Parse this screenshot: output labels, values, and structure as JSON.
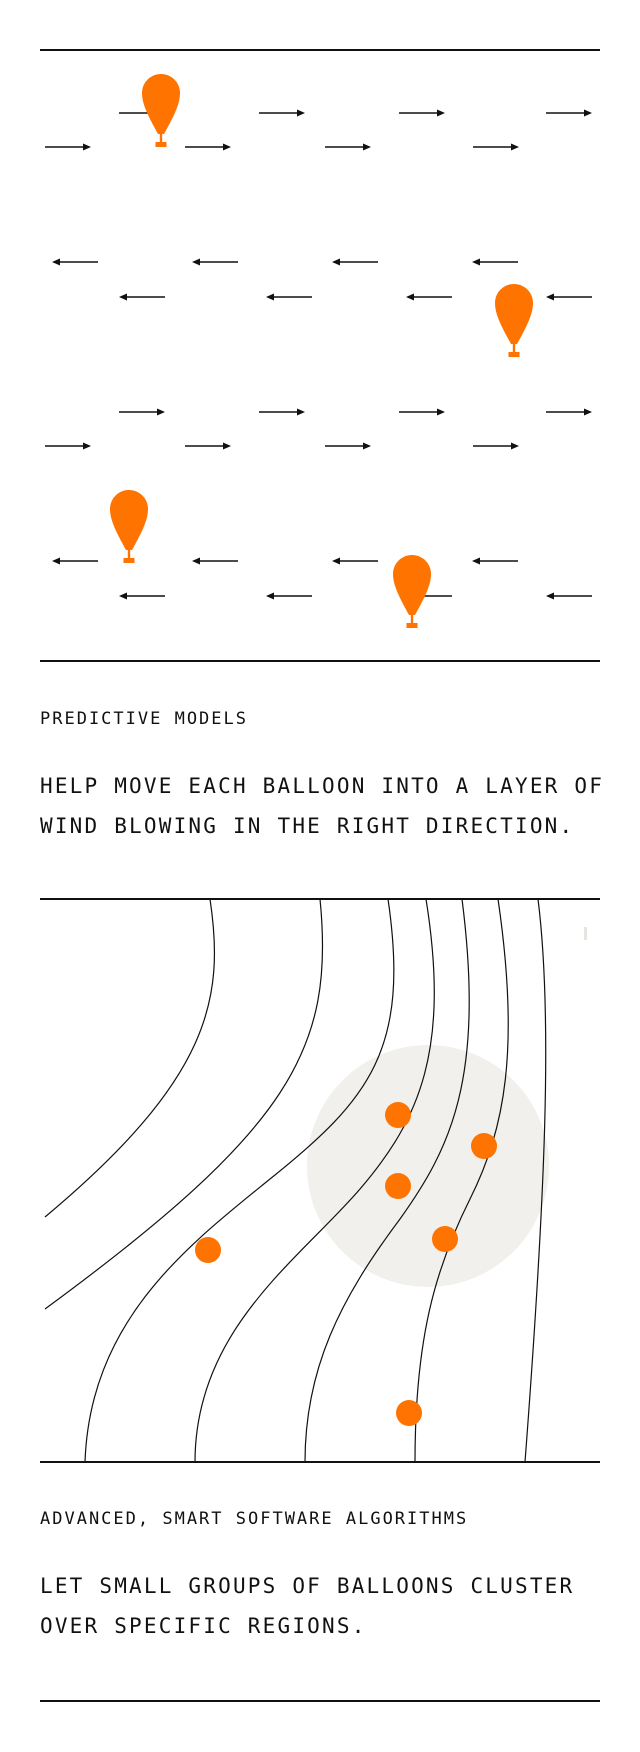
{
  "sections": [
    {
      "title": "PREDICTIVE MODELS",
      "body_lines": [
        "HELP MOVE EACH BALLOON INTO A LAYER OF",
        "WIND BLOWING IN THE RIGHT DIRECTION."
      ]
    },
    {
      "title": "ADVANCED, SMART SOFTWARE ALGORITHMS",
      "body_lines": [
        "LET SMALL GROUPS OF BALLOONS CLUSTER",
        "OVER SPECIFIC REGIONS."
      ]
    }
  ],
  "colors": {
    "balloon": "#ff7300",
    "line": "#111111",
    "cluster_region": "#f1f0ec"
  },
  "icons": {
    "balloon": "balloon-icon",
    "arrow_right": "arrow-right-icon",
    "arrow_left": "arrow-left-icon"
  }
}
